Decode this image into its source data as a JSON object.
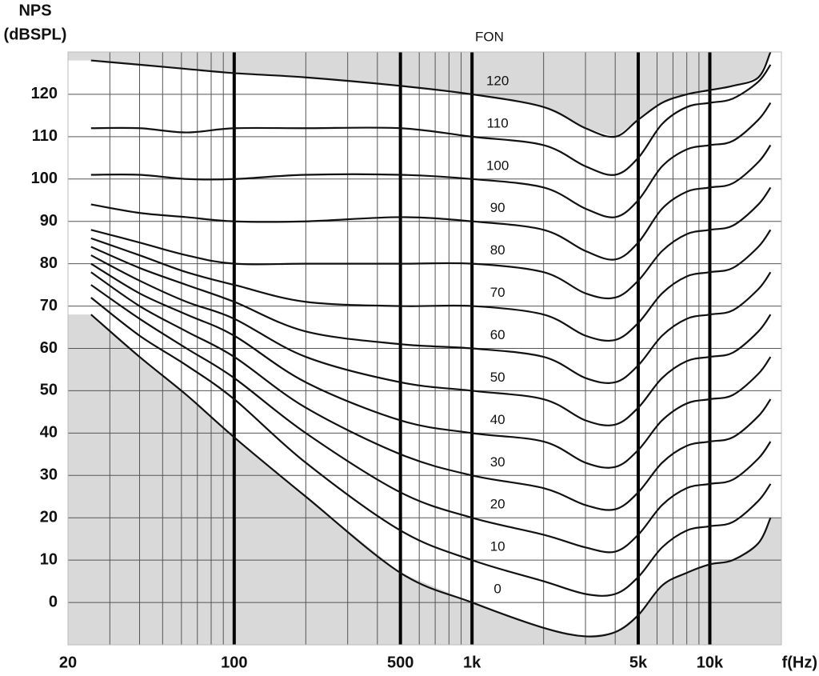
{
  "chart_data": {
    "type": "line",
    "log_x": true,
    "ylabel": [
      "NPS",
      "(dBSPL)"
    ],
    "xlabel": "f(Hz)",
    "legend_title": "FON",
    "x": [
      25,
      40,
      63,
      100,
      200,
      500,
      1000,
      2000,
      3000,
      4000,
      5000,
      6300,
      8000,
      10000,
      12500,
      16000,
      18000
    ],
    "xlim": [
      20,
      20000
    ],
    "xticks": [
      20,
      100,
      500,
      {
        "value": 1000,
        "label": "1k"
      },
      {
        "value": 5000,
        "label": "5k"
      },
      {
        "value": 10000,
        "label": "10k"
      }
    ],
    "ylim": [
      -10,
      130
    ],
    "yticks": [
      0,
      10,
      20,
      30,
      40,
      50,
      60,
      70,
      80,
      90,
      100,
      110,
      120
    ],
    "grid": true,
    "shade_color": "#d9d9d9",
    "series": [
      {
        "name": "0",
        "color": "#111111",
        "values": [
          68,
          58,
          49,
          39,
          25,
          7,
          0,
          -6,
          -8,
          -7,
          -3,
          4,
          7,
          9,
          10,
          14,
          20
        ]
      },
      {
        "name": "10",
        "color": "#111111",
        "values": [
          72,
          63,
          56,
          48,
          33,
          17,
          10,
          5,
          2,
          2,
          6,
          13,
          17,
          18,
          19,
          24,
          28
        ]
      },
      {
        "name": "20",
        "color": "#111111",
        "values": [
          75,
          67,
          60,
          53,
          40,
          26,
          20,
          16,
          13,
          12,
          16,
          23,
          27,
          28,
          29,
          34,
          38
        ]
      },
      {
        "name": "30",
        "color": "#111111",
        "values": [
          78,
          70,
          64,
          58,
          46,
          35,
          30,
          27,
          23,
          22,
          26,
          33,
          37,
          38,
          39,
          44,
          48
        ]
      },
      {
        "name": "40",
        "color": "#111111",
        "values": [
          80,
          73,
          68,
          63,
          52,
          43,
          40,
          38,
          33,
          32,
          36,
          43,
          47,
          48,
          49,
          54,
          58
        ]
      },
      {
        "name": "50",
        "color": "#111111",
        "values": [
          82,
          76,
          71,
          67,
          58,
          52,
          50,
          48,
          43,
          42,
          46,
          53,
          57,
          58,
          59,
          64,
          68
        ]
      },
      {
        "name": "60",
        "color": "#111111",
        "values": [
          84,
          79,
          75,
          71,
          64,
          61,
          60,
          58,
          53,
          52,
          56,
          63,
          67,
          68,
          69,
          74,
          78
        ]
      },
      {
        "name": "70",
        "color": "#111111",
        "values": [
          86,
          82,
          78,
          75,
          71,
          70,
          70,
          68,
          63,
          62,
          66,
          73,
          77,
          78,
          79,
          84,
          88
        ]
      },
      {
        "name": "80",
        "color": "#111111",
        "values": [
          88,
          85,
          82,
          80,
          80,
          80,
          80,
          78,
          73,
          72,
          76,
          83,
          87,
          88,
          89,
          94,
          98
        ]
      },
      {
        "name": "90",
        "color": "#111111",
        "values": [
          94,
          92,
          91,
          90,
          90,
          91,
          90,
          88,
          83,
          81,
          85,
          93,
          97,
          98,
          99,
          104,
          108
        ]
      },
      {
        "name": "100",
        "color": "#111111",
        "values": [
          101,
          101,
          100,
          100,
          101,
          101,
          100,
          98,
          93,
          91,
          95,
          103,
          107,
          108,
          109,
          114,
          118
        ]
      },
      {
        "name": "110",
        "color": "#111111",
        "values": [
          112,
          112,
          111,
          112,
          112,
          112,
          110,
          108,
          103,
          101,
          105,
          113,
          117,
          118,
          119,
          123,
          127
        ]
      },
      {
        "name": "120",
        "color": "#111111",
        "values": [
          128,
          127,
          126,
          125,
          124,
          122,
          120,
          117,
          112,
          110,
          114,
          118,
          120,
          121,
          122,
          124,
          130
        ]
      }
    ]
  }
}
